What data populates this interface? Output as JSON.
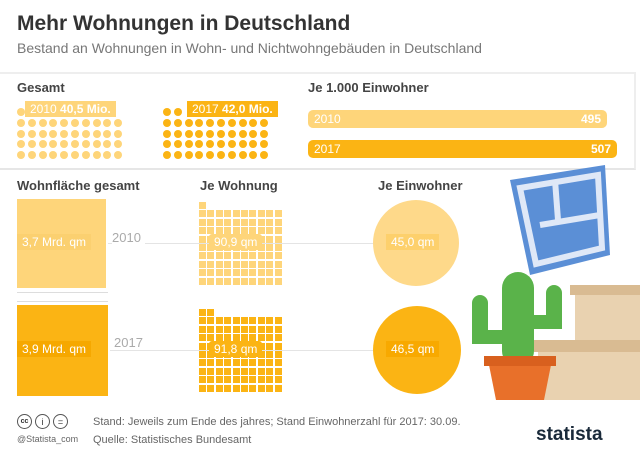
{
  "title": "Mehr Wohnungen in Deutschland",
  "subtitle": "Bestand an Wohnungen in Wohn- und Nichtwohngebäuden in Deutschland",
  "colors": {
    "y2010": "#fed57a",
    "y2017": "#fbb414"
  },
  "chart_data": {
    "type": "table",
    "years": [
      "2010",
      "2017"
    ],
    "gesamt": {
      "heading": "Gesamt",
      "values": [
        40.5,
        42.0
      ],
      "labels": [
        "40,5 Mio.",
        "42,0 Mio."
      ]
    },
    "je_1000": {
      "heading": "Je 1.000 Einwohner",
      "values": [
        495,
        507
      ],
      "labels": [
        "495",
        "507"
      ]
    },
    "wohnflaeche": {
      "heading": "Wohnfläche gesamt",
      "values": [
        3.7,
        3.9
      ],
      "labels": [
        "3,7 Mrd. qm",
        "3,9 Mrd. qm"
      ]
    },
    "je_wohnung": {
      "heading": "Je Wohnung",
      "values": [
        90.9,
        91.8
      ],
      "labels": [
        "90,9 qm",
        "91,8 qm"
      ]
    },
    "je_einwohner": {
      "heading": "Je Einwohner",
      "values": [
        45.0,
        46.5
      ],
      "labels": [
        "45,0 qm",
        "46,5 qm"
      ]
    }
  },
  "footer": {
    "note": "Stand: Jeweils zum Ende des jahres; Stand Einwohnerzahl für 2017: 30.09.",
    "source": "Quelle: Statistisches Bundesamt",
    "handle": "@Statista_com",
    "logo": "statista"
  }
}
